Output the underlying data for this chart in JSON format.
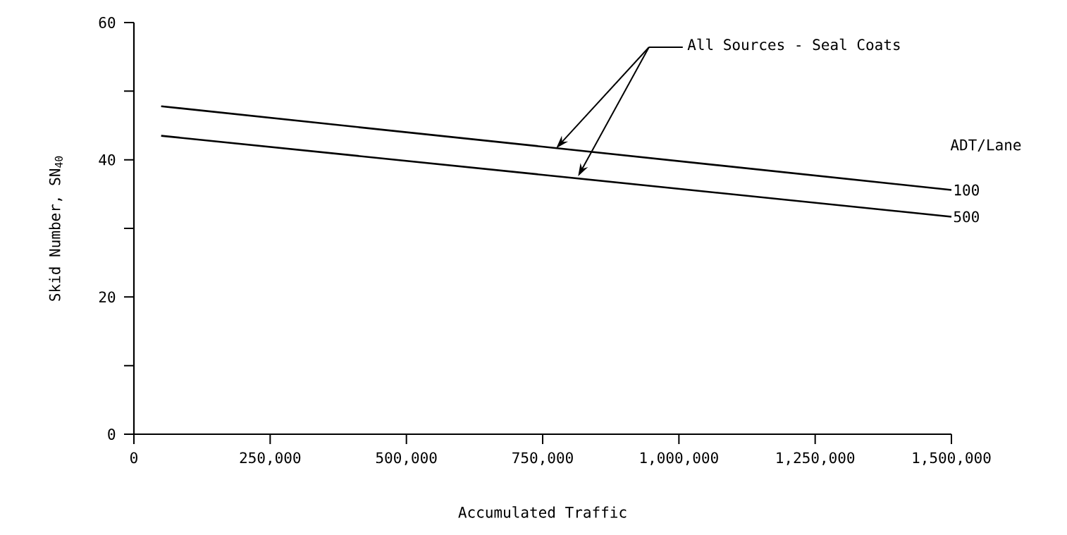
{
  "chart_data": {
    "type": "line",
    "xlabel": "Accumulated Traffic",
    "ylabel": "Skid Number, SN$_{40}$",
    "legend_title": "ADT/Lane",
    "series": [
      {
        "name": "100",
        "color": "#000000",
        "values": [
          47.8,
          35.6
        ]
      },
      {
        "name": "500",
        "color": "#000000",
        "values": [
          43.5,
          31.7
        ]
      }
    ],
    "x": [
      50000,
      1500000
    ],
    "annotations": [
      "All Sources - Seal Coats"
    ],
    "xlim": [
      0,
      1500000
    ],
    "ylim": [
      0,
      60
    ],
    "xticks": [
      0,
      {
        "value": 250000,
        "label": "250,000"
      },
      {
        "value": 500000,
        "label": "500,000"
      },
      {
        "value": 750000,
        "label": "750,000"
      },
      {
        "value": 1000000,
        "label": "1,000,000"
      },
      {
        "value": 1250000,
        "label": "1,250,000"
      },
      {
        "value": 1500000,
        "label": "1,500,000"
      }
    ],
    "yticks": [
      0,
      {
        "value": 10,
        "label": null
      },
      20,
      {
        "value": 30,
        "label": null
      },
      40,
      {
        "value": 50,
        "label": null
      },
      60
    ],
    "grid": false,
    "marker": "none",
    "line_style": "solid"
  }
}
